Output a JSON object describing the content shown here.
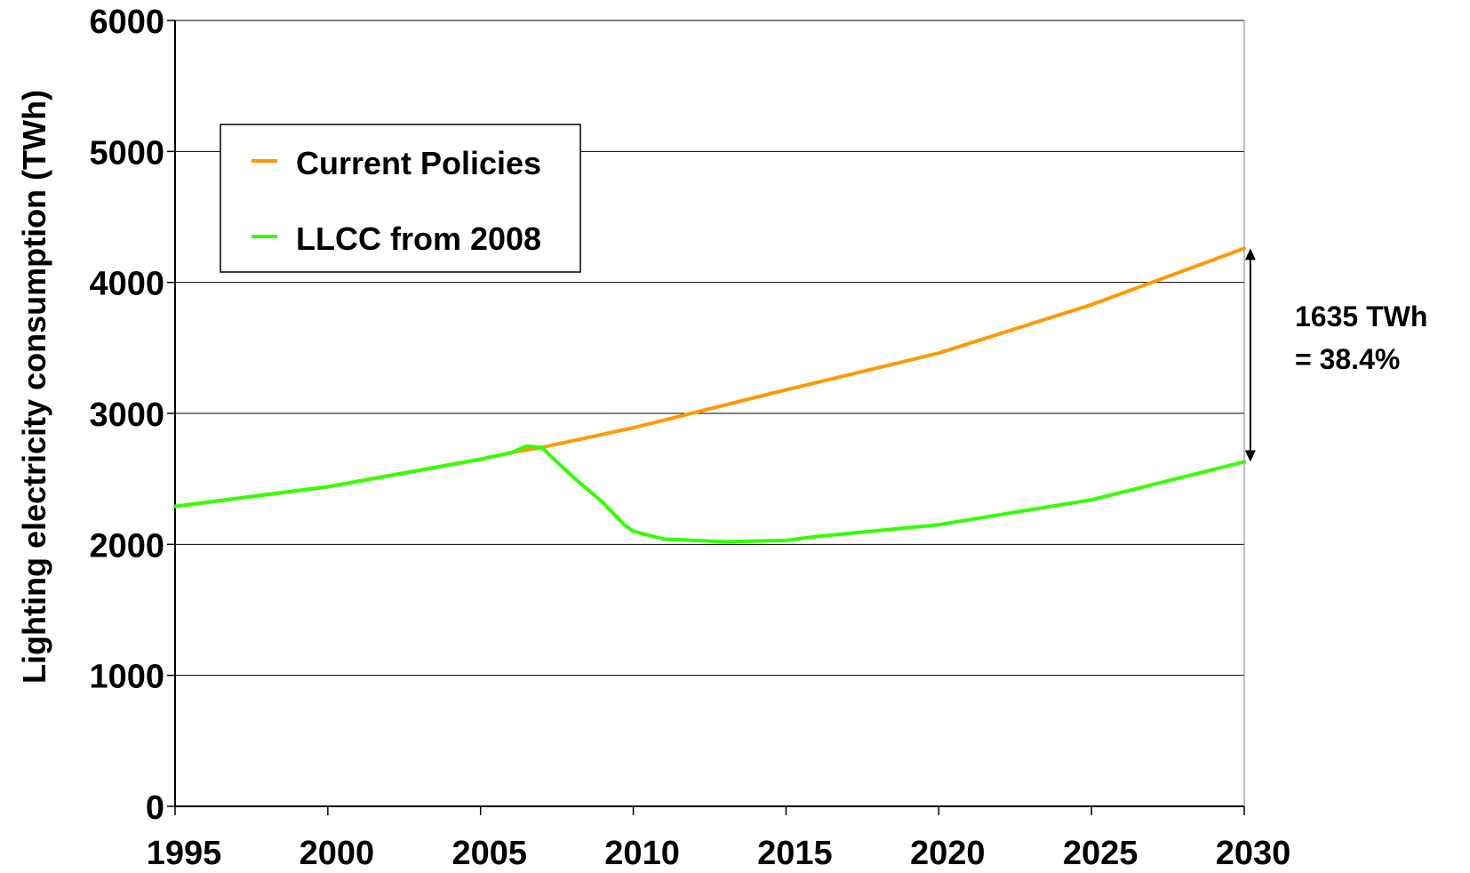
{
  "chart_data": {
    "type": "line",
    "title": "",
    "xlabel": "",
    "ylabel": "Lighting electricity consumption (TWh)",
    "xlim": [
      1995,
      2030
    ],
    "ylim": [
      0,
      6000
    ],
    "x_ticks": [
      "1995",
      "2000",
      "2005",
      "2010",
      "2015",
      "2020",
      "2025",
      "2030"
    ],
    "y_ticks": [
      "0",
      "1000",
      "2000",
      "3000",
      "4000",
      "5000",
      "6000"
    ],
    "grid": "horizontal",
    "legend_position": "top-left",
    "series": [
      {
        "name": "Current Policies",
        "color": "#FF9900",
        "x": [
          1995,
          2000,
          2005,
          2006,
          2007,
          2008,
          2010,
          2015,
          2020,
          2025,
          2030
        ],
        "values": [
          2290,
          2440,
          2650,
          2700,
          2740,
          2790,
          2890,
          3180,
          3460,
          3830,
          4260
        ]
      },
      {
        "name": "LLCC from 2008",
        "color": "#33FF00",
        "x": [
          1995,
          2000,
          2005,
          2006,
          2006.5,
          2007,
          2008,
          2009,
          2009.7,
          2010,
          2011,
          2012,
          2013,
          2015,
          2016,
          2020,
          2025,
          2030
        ],
        "values": [
          2290,
          2440,
          2650,
          2700,
          2750,
          2740,
          2520,
          2320,
          2150,
          2100,
          2040,
          2030,
          2020,
          2030,
          2060,
          2150,
          2340,
          2630
        ]
      }
    ],
    "annotation": {
      "line1": "1635 TWh",
      "line2": "= 38.4%",
      "x": 2030.2,
      "from": 4260,
      "to": 2630
    }
  }
}
